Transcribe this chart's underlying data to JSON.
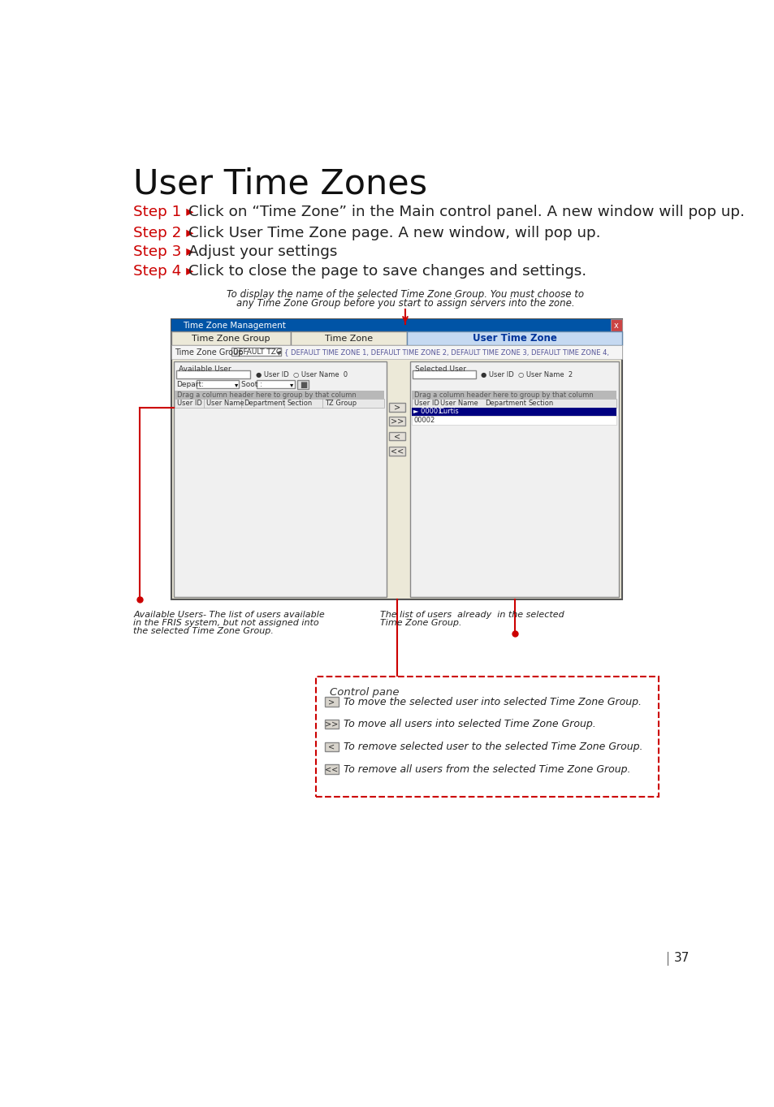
{
  "title": "User Time Zones",
  "steps": [
    {
      "label": "Step 1 ",
      "text": "Click on “Time Zone” in the Main control panel. A new window will pop up."
    },
    {
      "label": "Step 2 ",
      "text": "Click User Time Zone page. A new window, will pop up."
    },
    {
      "label": "Step 3 ",
      "text": "Adjust your settings"
    },
    {
      "label": "Step 4 ",
      "text": "Click to close the page to save changes and settings."
    }
  ],
  "arrow_char": "▸",
  "callout_top_line1": "To display the name of the selected Time Zone Group. You must choose to",
  "callout_top_line2": "any Time Zone Group before you start to assign servers into the zone.",
  "note_available_line1": "Available Users- The list of users available",
  "note_available_line2": "in the FRIS system, but not assigned into",
  "note_available_line3": "the selected Time Zone Group.",
  "note_selected_line1": "The list of users  already  in the selected",
  "note_selected_line2": "Time Zone Group.",
  "control_pane_title": "Control pane",
  "ci_labels": [
    ">",
    ">>",
    "<",
    "<<"
  ],
  "ci_texts": [
    "To move the selected user into selected Time Zone Group.",
    "To move all users into selected Time Zone Group.",
    "To remove selected user to the selected Time Zone Group.",
    "To remove all users from the selected Time Zone Group."
  ],
  "page_number": "37",
  "red_color": "#cc0000",
  "bg_color": "#ffffff",
  "text_color": "#222222",
  "scr_bg": "#d4d0c8",
  "tab_active_color": "#c5d9f1",
  "tab_inactive_color": "#ece9d8",
  "selected_row_color": "#000080",
  "dashed_box_color": "#cc0000",
  "gray_header": "#808080"
}
